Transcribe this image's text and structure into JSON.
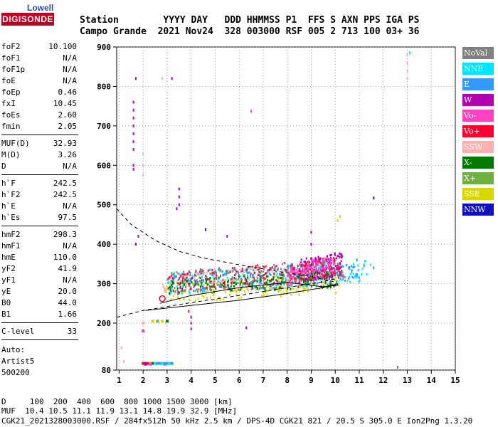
{
  "logo": {
    "top": "Lowell",
    "bottom": "DIGISONDE"
  },
  "header": {
    "line1": "Station        YYYY DAY   DDD HHMMSS P1  FFS S AXN PPS IGA PS",
    "line2": "Campo Grande  2021 Nov24  328 003000 RSF 005 2 713 100 03+ 36"
  },
  "params_group1": [
    {
      "k": "foF2",
      "v": "10.100"
    },
    {
      "k": "foF1",
      "v": "N/A"
    },
    {
      "k": "foF1p",
      "v": "N/A"
    },
    {
      "k": "foE",
      "v": "N/A"
    },
    {
      "k": "foEp",
      "v": "0.46"
    },
    {
      "k": "fxI",
      "v": "10.45"
    },
    {
      "k": "foEs",
      "v": "2.60"
    },
    {
      "k": "fmin",
      "v": "2.05"
    }
  ],
  "params_group2": [
    {
      "k": "MUF(D)",
      "v": "32.93"
    },
    {
      "k": "M(D)",
      "v": "3.26"
    },
    {
      "k": "D",
      "v": "N/A"
    }
  ],
  "params_group3": [
    {
      "k": "h`F",
      "v": "242.5"
    },
    {
      "k": "h`F2",
      "v": "242.5"
    },
    {
      "k": "h`E",
      "v": "N/A"
    },
    {
      "k": "h`Es",
      "v": "97.5"
    }
  ],
  "params_group4": [
    {
      "k": "hmF2",
      "v": "298.3"
    },
    {
      "k": "hmF1",
      "v": "N/A"
    },
    {
      "k": "hmE",
      "v": "110.0"
    },
    {
      "k": "yF2",
      "v": "41.9"
    },
    {
      "k": "yF1",
      "v": "N/A"
    },
    {
      "k": "yE",
      "v": "20.0"
    },
    {
      "k": "B0",
      "v": "44.0"
    },
    {
      "k": "B1",
      "v": "1.66"
    }
  ],
  "params_group5": [
    {
      "k": "C-level",
      "v": "33"
    }
  ],
  "auto": {
    "line1": "Auto:",
    "line2": "Artist5",
    "line3": "500200"
  },
  "footer": {
    "line1": "D     100  200  400  600  800 1000 1500 3000 [km]",
    "line2": "MUF  10.4 10.5 11.1 11.9 13.1 14.8 19.9 32.9 [MHz]",
    "line3": "CGK21_2021328003000.RSF / 284fx512h 50 kHz 2.5 km / DPS-4D CGK21 821 / 20.5 S 305.0 E Ion2Png 1.3.20"
  },
  "legend": [
    {
      "label": "NoVal",
      "bg": "#808080",
      "fg": "#ffffff"
    },
    {
      "label": "NNE",
      "bg": "#00e5ff",
      "fg": "#ffffff"
    },
    {
      "label": "E",
      "bg": "#3399ff",
      "fg": "#ffffff"
    },
    {
      "label": "W",
      "bg": "#b000b0",
      "fg": "#ffffff"
    },
    {
      "label": "Vo-",
      "bg": "#ff40c0",
      "fg": "#ffffff"
    },
    {
      "label": "Vo+",
      "bg": "#ff0033",
      "fg": "#ffffff"
    },
    {
      "label": "SSW",
      "bg": "#ffb0b0",
      "fg": "#ffffff"
    },
    {
      "label": "X-",
      "bg": "#007a00",
      "fg": "#ffffff"
    },
    {
      "label": "X+",
      "bg": "#70b040",
      "fg": "#ffffff"
    },
    {
      "label": "SSE",
      "bg": "#d8d800",
      "fg": "#ffffff"
    },
    {
      "label": "NNW",
      "bg": "#1010c0",
      "fg": "#ffffff"
    }
  ],
  "chart_data": {
    "type": "scatter",
    "xlim": [
      0.9,
      15
    ],
    "ylim": [
      80,
      900
    ],
    "xticks": [
      1,
      2,
      3,
      4,
      5,
      6,
      7,
      8,
      9,
      10,
      11,
      12,
      13,
      14,
      15
    ],
    "yticks": [
      80,
      200,
      300,
      400,
      500,
      600,
      700,
      800,
      900
    ],
    "grid": true,
    "legend_position": "right",
    "dashed_curve_upper": [
      [
        0.9,
        490
      ],
      [
        1.5,
        450
      ],
      [
        2.5,
        410
      ],
      [
        3.5,
        382
      ],
      [
        4.5,
        365
      ],
      [
        6,
        348
      ],
      [
        7.5,
        332
      ],
      [
        9,
        318
      ],
      [
        10,
        304
      ]
    ],
    "dashed_curve_lower": [
      [
        0.9,
        215
      ],
      [
        2,
        232
      ],
      [
        4,
        252
      ],
      [
        6,
        270
      ],
      [
        8,
        290
      ],
      [
        9.5,
        305
      ],
      [
        10,
        312
      ]
    ],
    "solid_curve": [
      [
        2.1,
        232
      ],
      [
        4,
        245
      ],
      [
        6,
        258
      ],
      [
        8,
        275
      ],
      [
        9.5,
        290
      ],
      [
        10.1,
        300
      ],
      [
        10.1,
        296
      ],
      [
        9.5,
        292
      ],
      [
        8,
        303
      ],
      [
        6,
        290
      ],
      [
        4,
        270
      ],
      [
        2.7,
        250
      ]
    ],
    "series_regions": [
      {
        "name": "SSE",
        "color": "#d8d800",
        "x_range": [
          2.8,
          10.2
        ],
        "y_center": [
          275,
          300
        ],
        "spread": 25
      },
      {
        "name": "SSW",
        "color": "#ffb0b0",
        "x_range": [
          2.8,
          9.5
        ],
        "y_center": [
          300,
          320
        ],
        "spread": 30
      },
      {
        "name": "NNE",
        "color": "#00e5ff",
        "x_range": [
          3.0,
          11.5
        ],
        "y_center": [
          300,
          330
        ],
        "spread": 30
      },
      {
        "name": "E",
        "color": "#3399ff",
        "x_range": [
          3.0,
          11.0
        ],
        "y_center": [
          300,
          330
        ],
        "spread": 25
      },
      {
        "name": "W",
        "color": "#b000b0",
        "x_range": [
          8.5,
          10.3
        ],
        "y_center": [
          330,
          350
        ],
        "spread": 30
      },
      {
        "name": "Vo-",
        "color": "#ff40c0",
        "x_range": [
          8.0,
          10.0
        ],
        "y_center": [
          320,
          345
        ],
        "spread": 25
      },
      {
        "name": "Vo+",
        "color": "#ff0033",
        "x_range": [
          3.0,
          10.3
        ],
        "y_center": [
          300,
          340
        ],
        "spread": 25
      },
      {
        "name": "X-",
        "color": "#007a00",
        "x_range": [
          3.0,
          10.0
        ],
        "y_center": [
          290,
          310
        ],
        "spread": 20
      },
      {
        "name": "NoVal",
        "color": "#808080",
        "x_range": [
          3.0,
          10.5
        ],
        "y_center": [
          300,
          330
        ],
        "spread": 30
      }
    ],
    "sporadic_points": [
      {
        "x": 1.7,
        "y": 820,
        "c": "#b000b0"
      },
      {
        "x": 1.6,
        "y": 760,
        "c": "#b000b0"
      },
      {
        "x": 1.6,
        "y": 740,
        "c": "#b000b0"
      },
      {
        "x": 1.6,
        "y": 720,
        "c": "#b000b0"
      },
      {
        "x": 1.6,
        "y": 700,
        "c": "#b000b0"
      },
      {
        "x": 1.6,
        "y": 680,
        "c": "#b000b0"
      },
      {
        "x": 1.6,
        "y": 660,
        "c": "#b000b0"
      },
      {
        "x": 1.6,
        "y": 640,
        "c": "#b000b0"
      },
      {
        "x": 1.6,
        "y": 600,
        "c": "#b000b0"
      },
      {
        "x": 1.6,
        "y": 590,
        "c": "#b000b0"
      },
      {
        "x": 2.0,
        "y": 630,
        "c": "#ffb0b0"
      },
      {
        "x": 2.0,
        "y": 600,
        "c": "#ffb0b0"
      },
      {
        "x": 2.0,
        "y": 575,
        "c": "#ffb0b0"
      },
      {
        "x": 3.2,
        "y": 820,
        "c": "#b000b0"
      },
      {
        "x": 2.8,
        "y": 820,
        "c": "#ffb0b0"
      },
      {
        "x": 3.5,
        "y": 540,
        "c": "#b000b0"
      },
      {
        "x": 3.5,
        "y": 520,
        "c": "#b000b0"
      },
      {
        "x": 3.5,
        "y": 500,
        "c": "#b000b0"
      },
      {
        "x": 3.4,
        "y": 490,
        "c": "#b000b0"
      },
      {
        "x": 6.5,
        "y": 737,
        "c": "#ff40c0"
      },
      {
        "x": 11.6,
        "y": 517,
        "c": "#1010c0"
      },
      {
        "x": 10.2,
        "y": 470,
        "c": "#d8d800"
      },
      {
        "x": 10.1,
        "y": 460,
        "c": "#d8d800"
      },
      {
        "x": 4.6,
        "y": 437,
        "c": "#1010c0"
      },
      {
        "x": 13.0,
        "y": 880,
        "c": "#ffb0b0"
      },
      {
        "x": 13.0,
        "y": 860,
        "c": "#ffb0b0"
      },
      {
        "x": 13.0,
        "y": 840,
        "c": "#ffb0b0"
      },
      {
        "x": 13.0,
        "y": 820,
        "c": "#ffb0b0"
      },
      {
        "x": 13.1,
        "y": 885,
        "c": "#00e5ff"
      },
      {
        "x": 6.3,
        "y": 188,
        "c": "#b000b0"
      },
      {
        "x": 4.0,
        "y": 185,
        "c": "#b000b0"
      },
      {
        "x": 4.0,
        "y": 200,
        "c": "#b000b0"
      },
      {
        "x": 4.0,
        "y": 215,
        "c": "#b000b0"
      },
      {
        "x": 3.9,
        "y": 230,
        "c": "#ff0033"
      },
      {
        "x": 1.8,
        "y": 420,
        "c": "#b000b0"
      },
      {
        "x": 1.7,
        "y": 400,
        "c": "#b000b0"
      },
      {
        "x": 1.1,
        "y": 137,
        "c": "#ffb0b0"
      },
      {
        "x": 1.2,
        "y": 102,
        "c": "#ffb0b0"
      },
      {
        "x": 12.6,
        "y": 87,
        "c": "#808080"
      },
      {
        "x": 10.9,
        "y": 360,
        "c": "#3399ff"
      },
      {
        "x": 11.2,
        "y": 345,
        "c": "#3399ff"
      },
      {
        "x": 11.6,
        "y": 340,
        "c": "#3399ff"
      },
      {
        "x": 9.0,
        "y": 430,
        "c": "#b000b0"
      },
      {
        "x": 9.0,
        "y": 400,
        "c": "#b000b0"
      },
      {
        "x": 5.5,
        "y": 420,
        "c": "#b000b0"
      }
    ],
    "es_trace": [
      {
        "x": 2.0,
        "y": 97,
        "c": "#ff0033"
      },
      {
        "x": 2.1,
        "y": 97,
        "c": "#ff0033"
      },
      {
        "x": 2.2,
        "y": 97,
        "c": "#ff0033"
      },
      {
        "x": 2.3,
        "y": 97,
        "c": "#d8d800"
      },
      {
        "x": 2.4,
        "y": 97,
        "c": "#007a00"
      },
      {
        "x": 2.5,
        "y": 97,
        "c": "#00e5ff"
      },
      {
        "x": 2.6,
        "y": 97,
        "c": "#3399ff"
      },
      {
        "x": 2.7,
        "y": 97,
        "c": "#3399ff"
      },
      {
        "x": 2.8,
        "y": 97,
        "c": "#00e5ff"
      },
      {
        "x": 2.9,
        "y": 97,
        "c": "#70b040"
      },
      {
        "x": 3.0,
        "y": 97,
        "c": "#3399ff"
      },
      {
        "x": 3.1,
        "y": 97,
        "c": "#00e5ff"
      },
      {
        "x": 3.2,
        "y": 97,
        "c": "#3399ff"
      },
      {
        "x": 2.1,
        "y": 95,
        "c": "#b000b0"
      },
      {
        "x": 2.3,
        "y": 95,
        "c": "#ff40c0"
      },
      {
        "x": 2.9,
        "y": 95,
        "c": "#3399ff"
      },
      {
        "x": 2.4,
        "y": 205,
        "c": "#d8d800"
      },
      {
        "x": 2.6,
        "y": 205,
        "c": "#70b040"
      },
      {
        "x": 2.8,
        "y": 205,
        "c": "#d8d800"
      },
      {
        "x": 3.0,
        "y": 205,
        "c": "#007a00"
      },
      {
        "x": 2.0,
        "y": 180,
        "c": "#ff40c0"
      },
      {
        "x": 2.0,
        "y": 200,
        "c": "#ffb0b0"
      }
    ]
  }
}
